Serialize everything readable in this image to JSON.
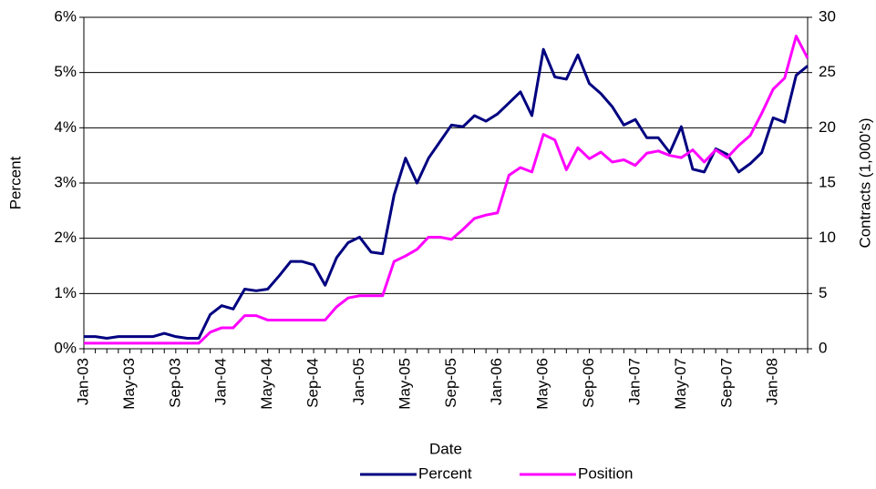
{
  "chart_data": {
    "type": "line",
    "x_label": "Date",
    "y_label": "Percent",
    "y2_label": "Contracts (1,000's)",
    "categories": [
      "Jan-03",
      null,
      null,
      null,
      "May-03",
      null,
      null,
      null,
      "Sep-03",
      null,
      null,
      null,
      "Jan-04",
      null,
      null,
      null,
      "May-04",
      null,
      null,
      null,
      "Sep-04",
      null,
      null,
      null,
      "Jan-05",
      null,
      null,
      null,
      "May-05",
      null,
      null,
      null,
      "Sep-05",
      null,
      null,
      null,
      "Jan-06",
      null,
      null,
      null,
      "May-06",
      null,
      null,
      null,
      "Sep-06",
      null,
      null,
      null,
      "Jan-07",
      null,
      null,
      null,
      "May-07",
      null,
      null,
      null,
      "Sep-07",
      null,
      null,
      null,
      "Jan-08",
      null,
      null,
      null
    ],
    "series": [
      {
        "name": "Percent",
        "color": "#000080",
        "values": [
          0.22,
          0.22,
          0.19,
          0.22,
          0.22,
          0.22,
          0.22,
          0.28,
          0.22,
          0.19,
          0.19,
          0.62,
          0.78,
          0.72,
          1.08,
          1.05,
          1.08,
          1.32,
          1.58,
          1.58,
          1.52,
          1.15,
          1.65,
          1.92,
          2.02,
          1.75,
          1.72,
          2.78,
          3.45,
          3.0,
          3.45,
          3.75,
          4.05,
          4.02,
          4.22,
          4.12,
          4.25,
          4.45,
          4.65,
          4.22,
          5.42,
          4.92,
          4.88,
          5.32,
          4.8,
          4.62,
          4.38,
          4.05,
          4.15,
          3.82,
          3.82,
          3.55,
          4.02,
          3.25,
          3.2,
          3.62,
          3.52,
          3.2,
          3.35,
          3.55,
          4.18,
          4.1,
          4.95,
          5.12
        ]
      },
      {
        "name": "Position",
        "color": "#ff00ff",
        "axis": "y2",
        "values": [
          0.5,
          0.5,
          0.5,
          0.5,
          0.5,
          0.5,
          0.5,
          0.5,
          0.5,
          0.5,
          0.5,
          1.5,
          1.9,
          1.9,
          3.0,
          3.0,
          2.6,
          2.6,
          2.6,
          2.6,
          2.6,
          2.6,
          3.8,
          4.6,
          4.8,
          4.8,
          4.8,
          7.9,
          8.4,
          9.0,
          10.1,
          10.1,
          9.9,
          10.8,
          11.8,
          12.1,
          12.3,
          15.7,
          16.4,
          16.0,
          19.4,
          18.9,
          16.2,
          18.2,
          17.2,
          17.8,
          16.9,
          17.1,
          16.6,
          17.7,
          17.9,
          17.5,
          17.3,
          18.0,
          16.9,
          18.0,
          17.3,
          18.4,
          19.3,
          21.3,
          23.5,
          24.5,
          28.3,
          26.3
        ]
      }
    ],
    "ylim": [
      0,
      6
    ],
    "yticks": [
      {
        "value": 0,
        "label": "0%"
      },
      {
        "value": 1,
        "label": "1%"
      },
      {
        "value": 2,
        "label": "2%"
      },
      {
        "value": 3,
        "label": "3%"
      },
      {
        "value": 4,
        "label": "4%"
      },
      {
        "value": 5,
        "label": "5%"
      },
      {
        "value": 6,
        "label": "6%"
      }
    ],
    "y2lim": [
      0,
      30
    ],
    "y2ticks": [
      0,
      5,
      10,
      15,
      20,
      25,
      30
    ],
    "grid": true,
    "legend": "bottom"
  }
}
